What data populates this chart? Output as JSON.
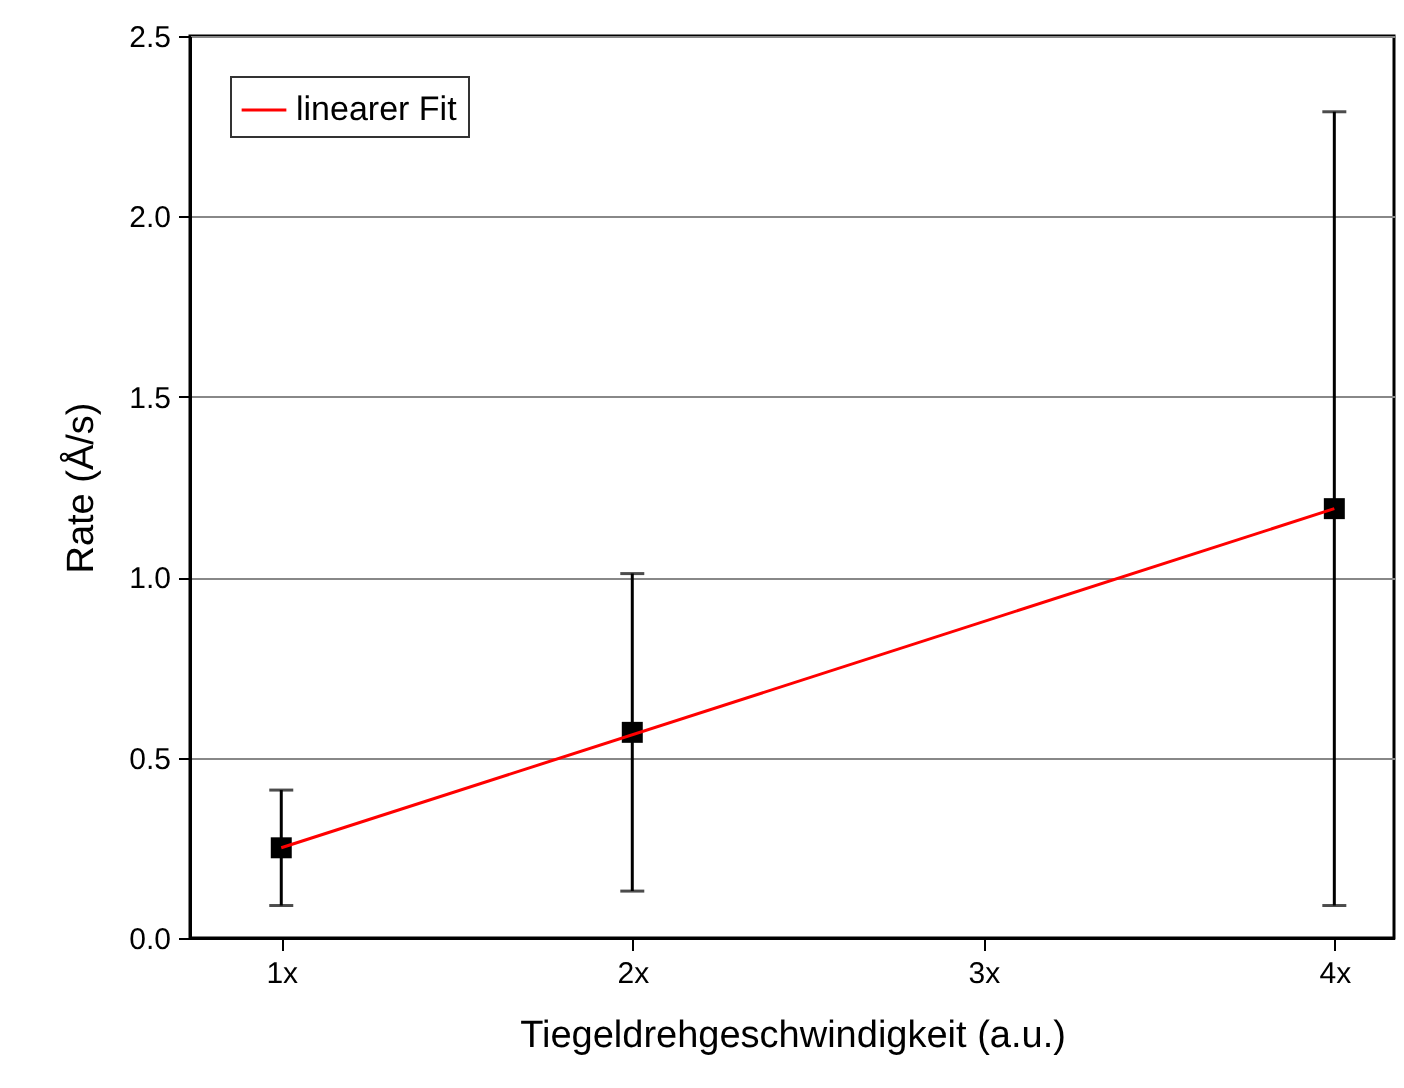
{
  "chart_data": {
    "type": "scatter",
    "xlabel": "Tiegeldrehgeschwindigkeit (a.u.)",
    "ylabel": "Rate (Å/s)",
    "x": [
      1,
      2,
      4
    ],
    "series": [
      {
        "color": "#000000",
        "marker": "square",
        "values": [
          0.25,
          0.57,
          1.19
        ],
        "errors": [
          0.16,
          0.44,
          1.1
        ]
      },
      {
        "type": "line",
        "name": "linearer Fit",
        "color": "#ff0000",
        "x": [
          1,
          4
        ],
        "values": [
          0.25,
          1.19
        ]
      }
    ],
    "xlim": [
      0.74,
      4.17
    ],
    "xticks": [
      {
        "value": 1,
        "label": "1x"
      },
      {
        "value": 2,
        "label": "2x"
      },
      {
        "value": 3,
        "label": "3x"
      },
      {
        "value": 4,
        "label": "4x"
      }
    ],
    "ylim": [
      0,
      2.5
    ],
    "yticks": [
      {
        "value": 0,
        "label": "0.0"
      },
      0.5,
      {
        "value": 1,
        "label": "1.0"
      },
      1.5,
      {
        "value": 2,
        "label": "2.0"
      },
      2.5
    ],
    "grid": "y",
    "legend": "top left"
  }
}
